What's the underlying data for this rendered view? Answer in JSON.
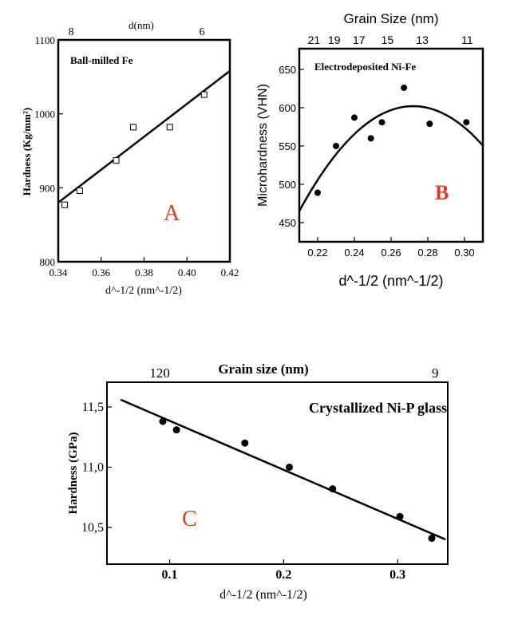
{
  "chart_data": [
    {
      "panel": "A",
      "type": "scatter",
      "title": "Ball-milled Fe",
      "xlabel": "d^-1/2 (nm^-1/2)",
      "ylabel": "Hardness (Kg/mm²)",
      "top_axis_label": "d(nm)",
      "top_ticks": [
        {
          "label": "8",
          "x": 0.346
        },
        {
          "label": "6",
          "x": 0.407
        }
      ],
      "xlim": [
        0.34,
        0.42
      ],
      "ylim": [
        800,
        1100
      ],
      "xticks": [
        0.34,
        0.36,
        0.38,
        0.4,
        0.42
      ],
      "xtick_labels": [
        "0.34",
        "0.36",
        "0.38",
        "0.40",
        "0.42"
      ],
      "yticks": [
        800,
        900,
        1000,
        1100
      ],
      "ytick_labels": [
        "800",
        "900",
        "1000",
        "1100"
      ],
      "marker": "open-square",
      "points": [
        [
          0.343,
          877
        ],
        [
          0.35,
          896
        ],
        [
          0.367,
          937
        ],
        [
          0.375,
          982
        ],
        [
          0.392,
          982
        ],
        [
          0.408,
          1026
        ]
      ],
      "fit": {
        "kind": "linear",
        "from": [
          0.34,
          880
        ],
        "to": [
          0.42,
          1058
        ]
      }
    },
    {
      "panel": "B",
      "type": "scatter",
      "title": "Electrodeposited Ni-Fe",
      "xlabel": "d^-1/2 (nm^-1/2)",
      "ylabel": "Microhardness (VHN)",
      "top_axis_label": "Grain Size (nm)",
      "top_ticks": [
        {
          "label": "21",
          "x": 0.218
        },
        {
          "label": "19",
          "x": 0.229
        },
        {
          "label": "17",
          "x": 0.2425
        },
        {
          "label": "15",
          "x": 0.258
        },
        {
          "label": "13",
          "x": 0.277
        },
        {
          "label": "11",
          "x": 0.3015
        }
      ],
      "xlim": [
        0.21,
        0.31
      ],
      "ylim": [
        425,
        677
      ],
      "xticks": [
        0.22,
        0.24,
        0.26,
        0.28,
        0.3
      ],
      "xtick_labels": [
        "0.22",
        "0.24",
        "0.26",
        "0.28",
        "0.30"
      ],
      "yticks": [
        450,
        500,
        550,
        600,
        650
      ],
      "ytick_labels": [
        "450",
        "500",
        "550",
        "600",
        "650"
      ],
      "marker": "filled-circle",
      "points": [
        [
          0.22,
          489
        ],
        [
          0.23,
          550
        ],
        [
          0.24,
          587
        ],
        [
          0.249,
          560
        ],
        [
          0.255,
          581
        ],
        [
          0.267,
          626
        ],
        [
          0.281,
          579
        ],
        [
          0.301,
          581
        ]
      ],
      "fit": {
        "kind": "quadratic",
        "vertex": [
          0.272,
          602
        ],
        "k": 35640
      }
    },
    {
      "panel": "C",
      "type": "scatter",
      "title": "Crystallized Ni-P glass",
      "xlabel": "d^-1/2 (nm^-1/2)",
      "ylabel": "Hardness (GPa)",
      "top_axis_label": "Grain size (nm)",
      "top_ticks": [
        {
          "label": "120",
          "x": 0.0913
        },
        {
          "label": "9",
          "x": 0.333
        }
      ],
      "xlim": [
        0.045,
        0.344
      ],
      "ylim": [
        10.195,
        11.705
      ],
      "xticks": [
        0.1,
        0.2,
        0.3
      ],
      "xtick_labels": [
        "0.1",
        "0.2",
        "0.3"
      ],
      "yticks": [
        10.5,
        11.0,
        11.5
      ],
      "ytick_labels": [
        "10,5",
        "11,0",
        "11,5"
      ],
      "marker": "filled-circle",
      "points": [
        [
          0.094,
          11.38
        ],
        [
          0.106,
          11.31
        ],
        [
          0.166,
          11.2
        ],
        [
          0.205,
          11.0
        ],
        [
          0.243,
          10.82
        ],
        [
          0.302,
          10.59
        ],
        [
          0.33,
          10.41
        ]
      ],
      "fit": {
        "kind": "linear",
        "from": [
          0.057,
          11.56
        ],
        "to": [
          0.342,
          10.4
        ]
      }
    }
  ],
  "panel_letters": {
    "A": "A",
    "B": "B",
    "C": "C",
    "color": "#e23b22"
  }
}
